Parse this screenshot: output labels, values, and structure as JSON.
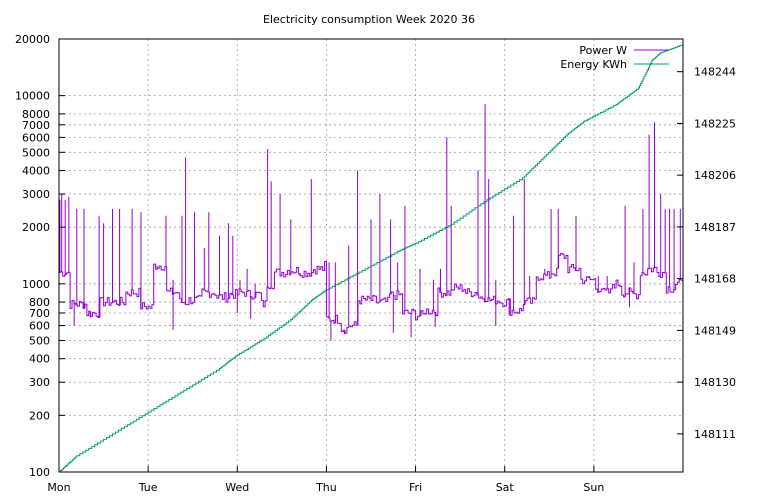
{
  "chart_data": {
    "type": "line",
    "title": "Electricity consumption Week 2020 36",
    "x": {
      "tick_labels": [
        "Mon",
        "Tue",
        "Wed",
        "Thu",
        "Fri",
        "Sat",
        "Sun"
      ],
      "range_days": [
        0,
        7
      ]
    },
    "y_left": {
      "scale": "log",
      "range": [
        100,
        20000
      ],
      "ticks": [
        100,
        200,
        300,
        400,
        500,
        600,
        700,
        800,
        1000,
        2000,
        3000,
        4000,
        5000,
        6000,
        7000,
        8000,
        10000,
        20000
      ],
      "tick_labels": [
        "100",
        "200",
        "300",
        "400",
        "500",
        "600",
        "700",
        "800",
        "1000",
        "2000",
        "3000",
        "4000",
        "5000",
        "6000",
        "7000",
        "8000",
        "10000",
        "20000"
      ]
    },
    "y_right": {
      "scale": "linear",
      "range": [
        148097,
        148256
      ],
      "ticks": [
        148111,
        148130,
        148149,
        148168,
        148187,
        148206,
        148225,
        148244
      ],
      "tick_labels": [
        "148111",
        "148130",
        "148149",
        "148168",
        "148187",
        "148206",
        "148225",
        "148244"
      ]
    },
    "grid": true,
    "legend_position": "top-right",
    "series": [
      {
        "name": "Power W",
        "axis": "left",
        "color": "#9400d3",
        "baseline": [
          [
            0.0,
            1150
          ],
          [
            0.12,
            780
          ],
          [
            0.3,
            700
          ],
          [
            0.45,
            800
          ],
          [
            0.6,
            800
          ],
          [
            0.75,
            900
          ],
          [
            0.9,
            760
          ],
          [
            1.0,
            750
          ],
          [
            1.05,
            1250
          ],
          [
            1.2,
            900
          ],
          [
            1.35,
            800
          ],
          [
            1.45,
            820
          ],
          [
            1.6,
            900
          ],
          [
            1.75,
            850
          ],
          [
            1.9,
            880
          ],
          [
            2.0,
            900
          ],
          [
            2.1,
            880
          ],
          [
            2.25,
            780
          ],
          [
            2.33,
            1000
          ],
          [
            2.4,
            1150
          ],
          [
            2.55,
            1180
          ],
          [
            2.7,
            1150
          ],
          [
            2.85,
            1200
          ],
          [
            2.97,
            1250
          ],
          [
            3.0,
            650
          ],
          [
            3.15,
            580
          ],
          [
            3.25,
            600
          ],
          [
            3.35,
            820
          ],
          [
            3.55,
            800
          ],
          [
            3.7,
            870
          ],
          [
            3.85,
            700
          ],
          [
            4.0,
            680
          ],
          [
            4.1,
            720
          ],
          [
            4.25,
            900
          ],
          [
            4.4,
            950
          ],
          [
            4.55,
            900
          ],
          [
            4.7,
            850
          ],
          [
            4.8,
            820
          ],
          [
            4.95,
            800
          ],
          [
            5.05,
            720
          ],
          [
            5.2,
            800
          ],
          [
            5.35,
            1100
          ],
          [
            5.5,
            1150
          ],
          [
            5.6,
            1400
          ],
          [
            5.7,
            1200
          ],
          [
            5.85,
            1050
          ],
          [
            6.0,
            950
          ],
          [
            6.1,
            900
          ],
          [
            6.2,
            1000
          ],
          [
            6.3,
            900
          ],
          [
            6.4,
            880
          ],
          [
            6.5,
            1150
          ],
          [
            6.6,
            1200
          ],
          [
            6.7,
            1150
          ],
          [
            6.8,
            950
          ],
          [
            6.9,
            1000
          ],
          [
            7.0,
            950
          ]
        ],
        "spikes": [
          [
            0.01,
            2800
          ],
          [
            0.03,
            3000
          ],
          [
            0.07,
            2800
          ],
          [
            0.11,
            2900
          ],
          [
            0.2,
            2500
          ],
          [
            0.28,
            2500
          ],
          [
            0.45,
            2300
          ],
          [
            0.5,
            2100
          ],
          [
            0.6,
            2500
          ],
          [
            0.68,
            2500
          ],
          [
            0.82,
            2500
          ],
          [
            0.92,
            2400
          ],
          [
            1.1,
            1250
          ],
          [
            1.2,
            2300
          ],
          [
            1.28,
            1050
          ],
          [
            1.38,
            2300
          ],
          [
            1.42,
            4700
          ],
          [
            1.52,
            2400
          ],
          [
            1.63,
            1550
          ],
          [
            1.68,
            2400
          ],
          [
            1.8,
            1800
          ],
          [
            1.9,
            2100
          ],
          [
            1.95,
            1800
          ],
          [
            2.03,
            1050
          ],
          [
            2.11,
            1200
          ],
          [
            2.2,
            1000
          ],
          [
            2.34,
            5200
          ],
          [
            2.38,
            3500
          ],
          [
            2.48,
            3000
          ],
          [
            2.6,
            2200
          ],
          [
            2.7,
            1100
          ],
          [
            2.83,
            3600
          ],
          [
            3.03,
            1300
          ],
          [
            3.1,
            1300
          ],
          [
            3.25,
            1600
          ],
          [
            3.35,
            4000
          ],
          [
            3.5,
            2200
          ],
          [
            3.6,
            3000
          ],
          [
            3.72,
            2200
          ],
          [
            3.8,
            1300
          ],
          [
            3.88,
            2600
          ],
          [
            4.05,
            1200
          ],
          [
            4.2,
            1050
          ],
          [
            4.28,
            1200
          ],
          [
            4.35,
            6000
          ],
          [
            4.4,
            2600
          ],
          [
            4.7,
            4000
          ],
          [
            4.78,
            9000
          ],
          [
            4.82,
            3600
          ],
          [
            4.9,
            1050
          ],
          [
            5.1,
            2300
          ],
          [
            5.22,
            3600
          ],
          [
            5.28,
            1100
          ],
          [
            5.45,
            1200
          ],
          [
            5.52,
            2500
          ],
          [
            5.6,
            2500
          ],
          [
            5.8,
            2300
          ],
          [
            5.95,
            1100
          ],
          [
            6.05,
            1100
          ],
          [
            6.15,
            1100
          ],
          [
            6.35,
            2600
          ],
          [
            6.45,
            1300
          ],
          [
            6.55,
            2500
          ],
          [
            6.62,
            6200
          ],
          [
            6.68,
            7200
          ],
          [
            6.75,
            3000
          ],
          [
            6.8,
            2500
          ],
          [
            6.85,
            2500
          ],
          [
            6.9,
            2500
          ],
          [
            6.97,
            2500
          ]
        ],
        "dips": [
          [
            0.17,
            600
          ],
          [
            0.35,
            660
          ],
          [
            1.28,
            570
          ],
          [
            2.0,
            700
          ],
          [
            2.15,
            650
          ],
          [
            3.05,
            500
          ],
          [
            3.2,
            540
          ],
          [
            3.75,
            550
          ],
          [
            3.95,
            520
          ],
          [
            4.22,
            590
          ],
          [
            4.9,
            600
          ],
          [
            5.05,
            680
          ],
          [
            6.4,
            750
          ]
        ]
      },
      {
        "name": "Energy KWh",
        "axis": "right",
        "color": "#009e73",
        "points": [
          [
            0.0,
            148097
          ],
          [
            0.2,
            148103
          ],
          [
            0.6,
            148111
          ],
          [
            1.0,
            148119
          ],
          [
            1.4,
            148127
          ],
          [
            1.8,
            148135
          ],
          [
            2.0,
            148140
          ],
          [
            2.3,
            148146
          ],
          [
            2.6,
            148153
          ],
          [
            2.83,
            148160
          ],
          [
            3.0,
            148164
          ],
          [
            3.4,
            148171
          ],
          [
            3.8,
            148178
          ],
          [
            4.0,
            148181
          ],
          [
            4.4,
            148188
          ],
          [
            4.8,
            148197
          ],
          [
            5.2,
            148205
          ],
          [
            5.45,
            148213
          ],
          [
            5.7,
            148221
          ],
          [
            5.9,
            148226
          ],
          [
            6.25,
            148232
          ],
          [
            6.5,
            148238
          ],
          [
            6.65,
            148248
          ],
          [
            6.75,
            148251
          ],
          [
            7.0,
            148254
          ]
        ]
      }
    ]
  }
}
